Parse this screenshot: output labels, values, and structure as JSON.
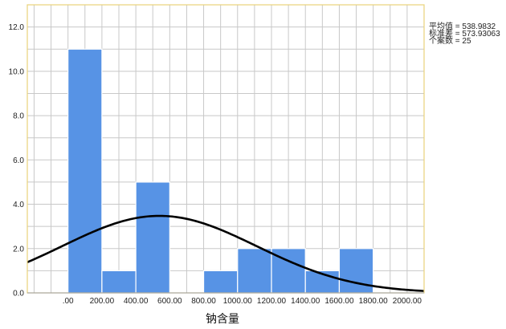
{
  "chart_data": {
    "type": "bar",
    "variant": "histogram-with-normal-curve",
    "xlabel": "钠含量",
    "ylabel": "",
    "bins": [
      {
        "start": 0,
        "end": 200,
        "count": 11
      },
      {
        "start": 200,
        "end": 400,
        "count": 1
      },
      {
        "start": 400,
        "end": 600,
        "count": 5
      },
      {
        "start": 600,
        "end": 800,
        "count": 0
      },
      {
        "start": 800,
        "end": 1000,
        "count": 1
      },
      {
        "start": 1000,
        "end": 1200,
        "count": 2
      },
      {
        "start": 1200,
        "end": 1400,
        "count": 2
      },
      {
        "start": 1400,
        "end": 1600,
        "count": 1
      },
      {
        "start": 1600,
        "end": 1800,
        "count": 2
      }
    ],
    "x_ticks": [
      ".00",
      "200.00",
      "400.00",
      "600.00",
      "800.00",
      "1000.00",
      "1200.00",
      "1400.00",
      "1600.00",
      "1800.00",
      "2000.00"
    ],
    "y_ticks": [
      "0.0",
      "2.0",
      "4.0",
      "6.0",
      "8.0",
      "10.0",
      "12.0"
    ],
    "xlim": [
      -240,
      2100
    ],
    "ylim": [
      0,
      13
    ],
    "grid": true,
    "normal_curve": {
      "mean": 538.9832,
      "std": 573.93063,
      "n": 25,
      "bin_width": 200
    },
    "stats": [
      {
        "label": "平均值",
        "value": "538.9832"
      },
      {
        "label": "标准差",
        "value": "573.93063"
      },
      {
        "label": "个案数",
        "value": "25"
      }
    ],
    "colors": {
      "bar_fill": "#5793e5",
      "bar_stroke": "#ffffff",
      "grid": "#c8c8c8",
      "frame": "#e8d27a",
      "curve": "#000000"
    }
  }
}
